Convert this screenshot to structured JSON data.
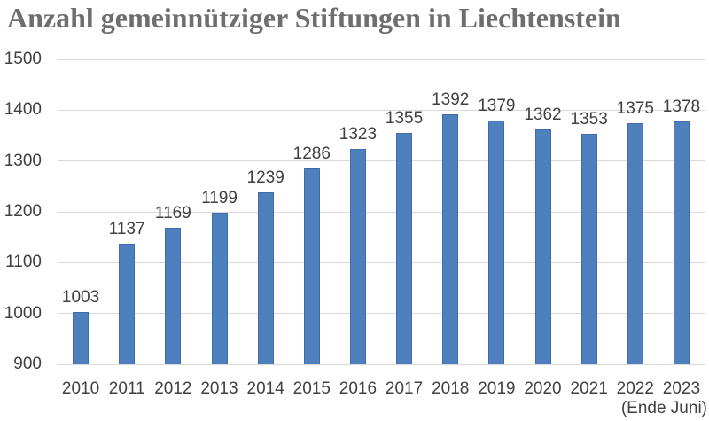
{
  "title": "Anzahl gemeinnütziger Stiftungen in Liechtenstein",
  "chart_data": {
    "type": "bar",
    "title": "Anzahl gemeinnütziger Stiftungen in Liechtenstein",
    "categories": [
      "2010",
      "2011",
      "2012",
      "2013",
      "2014",
      "2015",
      "2016",
      "2017",
      "2018",
      "2019",
      "2020",
      "2021",
      "2022",
      "2023"
    ],
    "values": [
      1003,
      1137,
      1169,
      1199,
      1239,
      1286,
      1323,
      1355,
      1392,
      1379,
      1362,
      1353,
      1375,
      1378
    ],
    "data_labels_shown": true,
    "xlabel": "",
    "ylabel": "",
    "ylim": [
      900,
      1500
    ],
    "yticks": [
      900,
      1000,
      1100,
      1200,
      1300,
      1400,
      1500
    ],
    "x_axis_note": "(Ende Juni)",
    "x_axis_note_category": "2023",
    "grid": true,
    "legend": "none",
    "colors": {
      "bar_fill": "#4e80bd",
      "bar_border": "#3e6ca8",
      "gridline": "#d9d9d9",
      "axis_text": "#404040",
      "value_label_text": "#404040",
      "title_text": "#6e6e6e"
    }
  }
}
